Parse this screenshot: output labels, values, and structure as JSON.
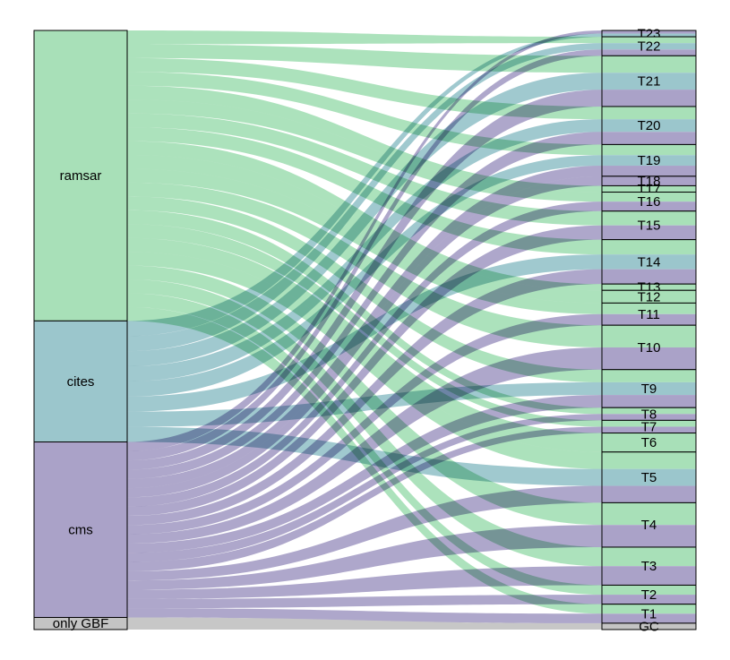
{
  "diagram": {
    "type": "alluvial",
    "colors": {
      "ramsar": "#a8e0b8",
      "cites": "#9bc6cc",
      "cms": "#aaa2c8",
      "only GBF": "#c4c4c4",
      "outline": "#000000",
      "background": "#ffffff"
    },
    "left_nodes": [
      {
        "id": "ramsar",
        "label": "ramsar",
        "weight": 48
      },
      {
        "id": "cites",
        "label": "cites",
        "weight": 20
      },
      {
        "id": "cms",
        "label": "cms",
        "weight": 29
      },
      {
        "id": "onlygbf",
        "label": "only GBF",
        "weight": 2
      }
    ],
    "right_nodes": [
      {
        "label": "T23",
        "weight": 1,
        "mix": [
          "cms",
          "cites"
        ]
      },
      {
        "label": "T22",
        "weight": 3,
        "mix": [
          "ramsar",
          "cites",
          "cms"
        ]
      },
      {
        "label": "T21",
        "weight": 8,
        "mix": [
          "ramsar",
          "cites",
          "cms"
        ]
      },
      {
        "label": "T20",
        "weight": 6,
        "mix": [
          "ramsar",
          "cites",
          "cms"
        ]
      },
      {
        "label": "T19",
        "weight": 5,
        "mix": [
          "ramsar",
          "cites",
          "cms"
        ]
      },
      {
        "label": "T18",
        "weight": 1.5,
        "mix": [
          "cms"
        ]
      },
      {
        "label": "T17",
        "weight": 1,
        "mix": [
          "ramsar"
        ]
      },
      {
        "label": "T16",
        "weight": 3,
        "mix": [
          "ramsar",
          "cms"
        ]
      },
      {
        "label": "T15",
        "weight": 4.5,
        "mix": [
          "ramsar",
          "cms"
        ]
      },
      {
        "label": "T14",
        "weight": 7,
        "mix": [
          "ramsar",
          "cites",
          "cms"
        ]
      },
      {
        "label": "T13",
        "weight": 1,
        "mix": [
          "ramsar"
        ]
      },
      {
        "label": "T12",
        "weight": 2,
        "mix": [
          "ramsar"
        ]
      },
      {
        "label": "T11",
        "weight": 3.5,
        "mix": [
          "ramsar",
          "cms"
        ]
      },
      {
        "label": "T10",
        "weight": 7,
        "mix": [
          "ramsar",
          "cms"
        ]
      },
      {
        "label": "T9",
        "weight": 6,
        "mix": [
          "ramsar",
          "cites",
          "cms"
        ]
      },
      {
        "label": "T8",
        "weight": 2,
        "mix": [
          "ramsar",
          "cms"
        ]
      },
      {
        "label": "T7",
        "weight": 2,
        "mix": [
          "ramsar",
          "cms"
        ]
      },
      {
        "label": "T6",
        "weight": 3,
        "mix": [
          "ramsar"
        ]
      },
      {
        "label": "T5",
        "weight": 8,
        "mix": [
          "ramsar",
          "cites",
          "cms"
        ]
      },
      {
        "label": "T4",
        "weight": 7,
        "mix": [
          "ramsar",
          "cms"
        ]
      },
      {
        "label": "T3",
        "weight": 6,
        "mix": [
          "ramsar",
          "cms"
        ]
      },
      {
        "label": "T2",
        "weight": 3,
        "mix": [
          "ramsar",
          "cms"
        ]
      },
      {
        "label": "T1",
        "weight": 3,
        "mix": [
          "ramsar",
          "cms"
        ]
      },
      {
        "label": "GC",
        "weight": 1,
        "mix": [
          "onlygbf"
        ]
      }
    ]
  }
}
